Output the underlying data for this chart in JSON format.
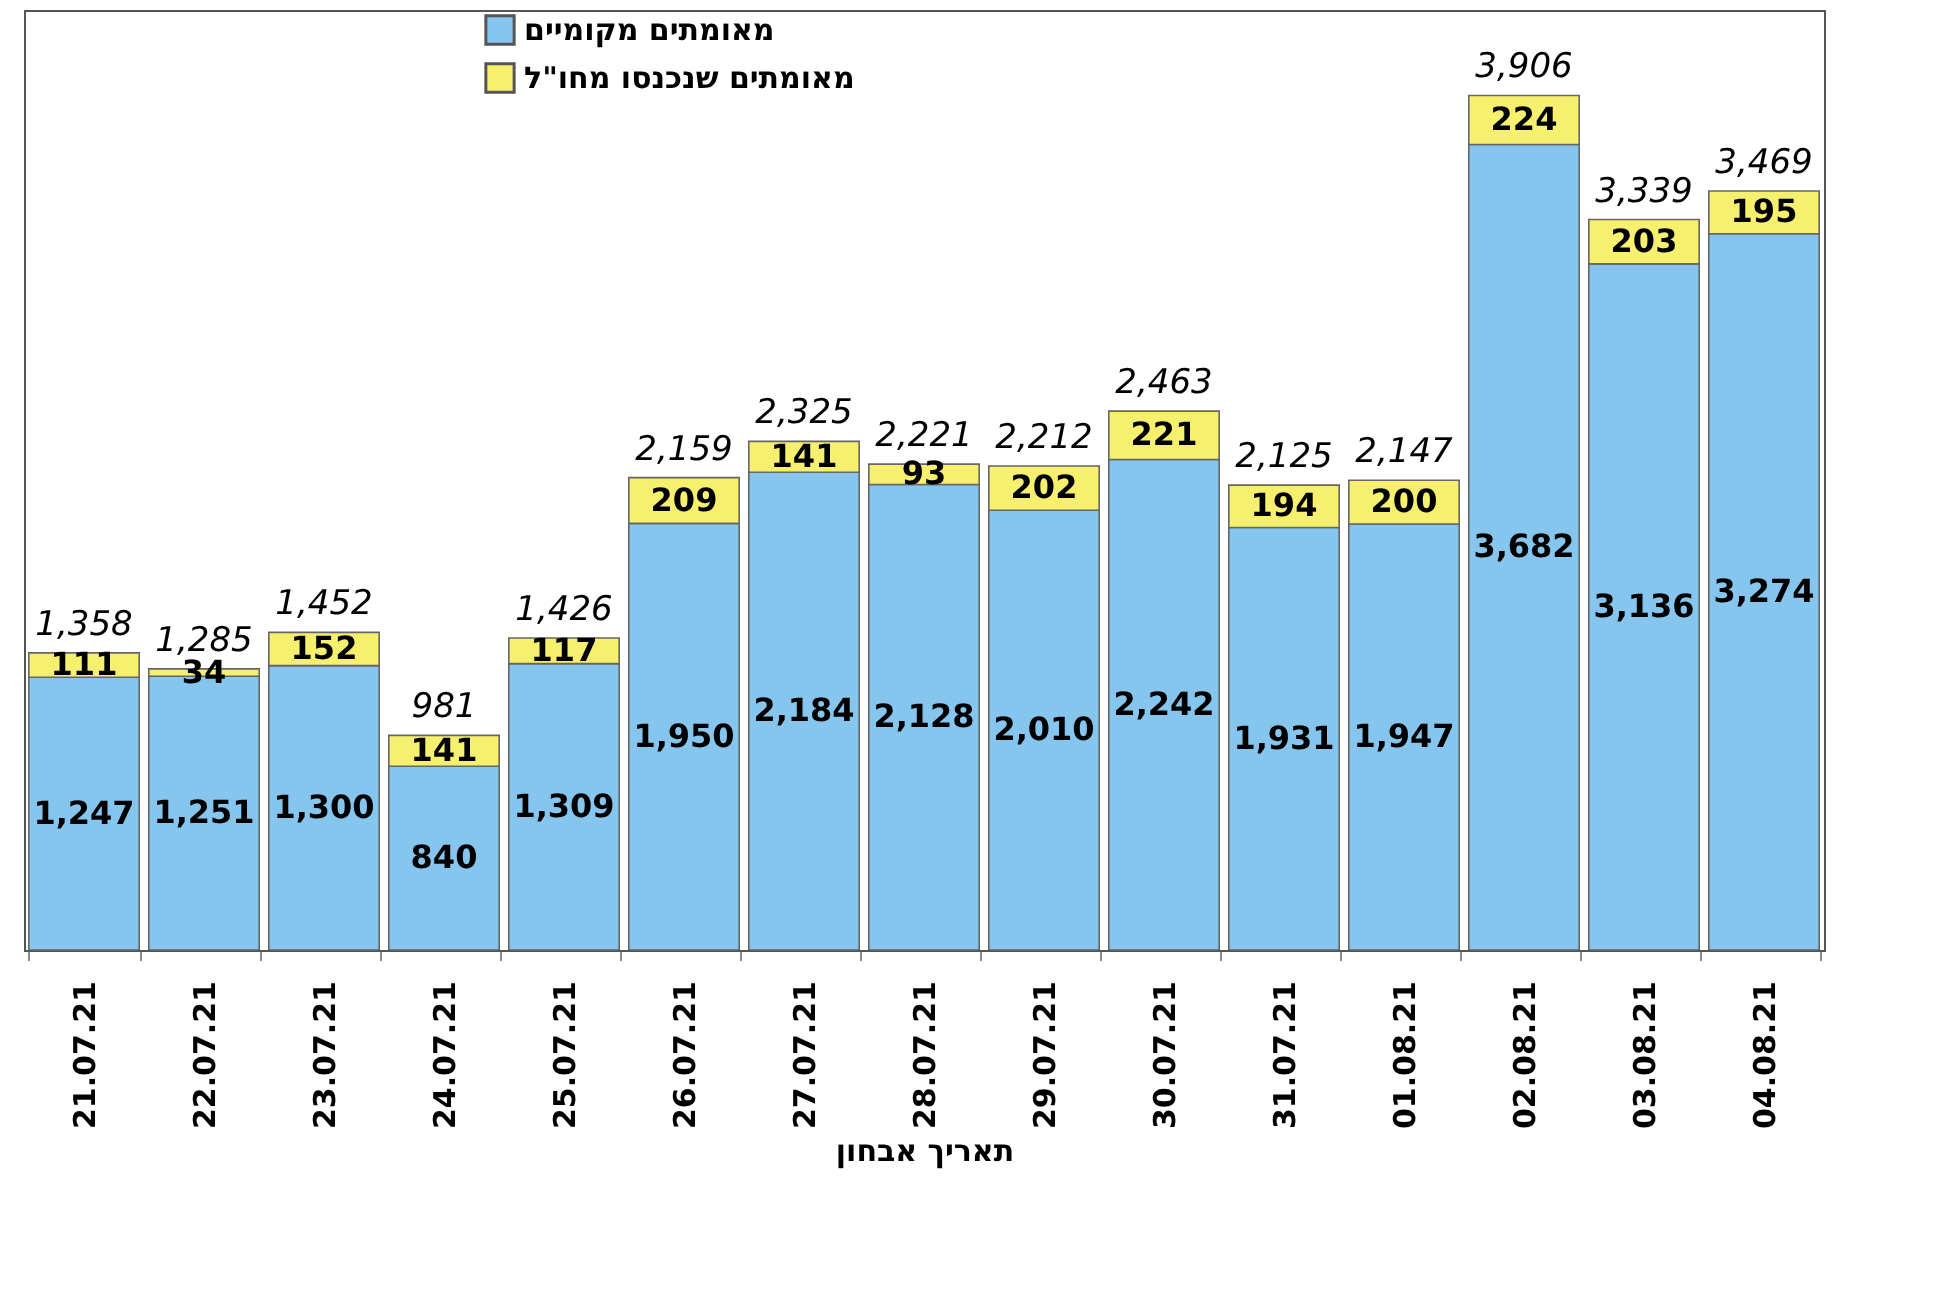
{
  "chart_data": {
    "type": "bar",
    "stacked": true,
    "xlabel": "תאריך אבחון",
    "categories": [
      "21.07.21",
      "22.07.21",
      "23.07.21",
      "24.07.21",
      "25.07.21",
      "26.07.21",
      "27.07.21",
      "28.07.21",
      "29.07.21",
      "30.07.21",
      "31.07.21",
      "01.08.21",
      "02.08.21",
      "03.08.21",
      "04.08.21"
    ],
    "series": [
      {
        "name": "מאומתים מקומיים",
        "color": "#86c5ee",
        "values": [
          1247,
          1251,
          1300,
          840,
          1309,
          1950,
          2184,
          2128,
          2010,
          2242,
          1931,
          1947,
          3682,
          3136,
          3274
        ],
        "value_labels": [
          "1,247",
          "1,251",
          "1,300",
          "840",
          "1,309",
          "1,950",
          "2,184",
          "2,128",
          "2,010",
          "2,242",
          "1,931",
          "1,947",
          "3,682",
          "3,136",
          "3,274"
        ]
      },
      {
        "name": "מאומתים שנכנסו מחו\"ל",
        "color": "#f7ef6e",
        "values": [
          111,
          34,
          152,
          141,
          117,
          209,
          141,
          93,
          202,
          221,
          194,
          200,
          224,
          203,
          195
        ],
        "value_labels": [
          "111",
          "34",
          "152",
          "141",
          "117",
          "209",
          "141",
          "93",
          "202",
          "221",
          "194",
          "200",
          "224",
          "203",
          "195"
        ]
      }
    ],
    "totals": [
      "1,358",
      "1,285",
      "1,452",
      "981",
      "1,426",
      "2,159",
      "2,325",
      "2,221",
      "2,212",
      "2,463",
      "2,125",
      "2,147",
      "3,906",
      "3,339",
      "3,469"
    ],
    "legend": "top left",
    "grid": false
  }
}
